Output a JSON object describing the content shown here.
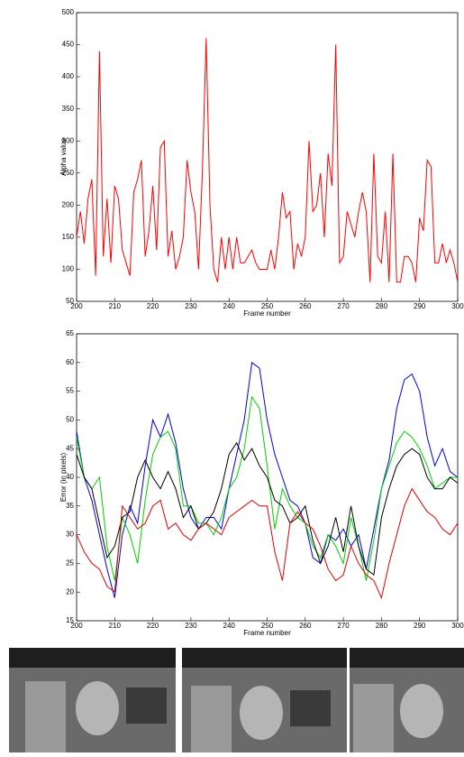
{
  "chart_data": [
    {
      "type": "line",
      "ylabel": "Alpha value",
      "xlabel": "Frame number",
      "color": "#ff0000",
      "x": [
        200,
        201,
        202,
        203,
        204,
        205,
        206,
        207,
        208,
        209,
        210,
        211,
        212,
        213,
        214,
        215,
        216,
        217,
        218,
        219,
        220,
        221,
        222,
        223,
        224,
        225,
        226,
        227,
        228,
        229,
        230,
        231,
        232,
        233,
        234,
        235,
        236,
        237,
        238,
        239,
        240,
        241,
        242,
        243,
        244,
        245,
        246,
        247,
        248,
        249,
        250,
        251,
        252,
        253,
        254,
        255,
        256,
        257,
        258,
        259,
        260,
        261,
        262,
        263,
        264,
        265,
        266,
        267,
        268,
        269,
        270,
        271,
        272,
        273,
        274,
        275,
        276,
        277,
        278,
        279,
        280,
        281,
        282,
        283,
        284,
        285,
        286,
        287,
        288,
        289,
        290,
        291,
        292,
        293,
        294,
        295,
        296,
        297,
        298,
        299,
        300
      ],
      "values": [
        150,
        190,
        140,
        210,
        240,
        90,
        440,
        120,
        210,
        110,
        230,
        210,
        130,
        110,
        90,
        220,
        240,
        270,
        120,
        160,
        230,
        130,
        290,
        300,
        120,
        160,
        100,
        120,
        150,
        270,
        220,
        190,
        100,
        250,
        460,
        200,
        100,
        80,
        150,
        100,
        150,
        100,
        150,
        110,
        110,
        120,
        130,
        110,
        100,
        100,
        100,
        130,
        100,
        150,
        220,
        180,
        190,
        100,
        140,
        120,
        150,
        300,
        190,
        200,
        250,
        150,
        280,
        230,
        450,
        110,
        120,
        190,
        170,
        150,
        190,
        220,
        190,
        80,
        280,
        120,
        110,
        190,
        80,
        280,
        80,
        80,
        120,
        120,
        110,
        80,
        180,
        160,
        270,
        260,
        110,
        110,
        140,
        110,
        130,
        110,
        80
      ],
      "xlim": [
        200,
        300
      ],
      "ylim": [
        50,
        500
      ],
      "xticks": [
        200,
        210,
        220,
        230,
        240,
        250,
        260,
        270,
        280,
        290,
        300
      ],
      "yticks": [
        50,
        100,
        150,
        200,
        250,
        300,
        350,
        400,
        450,
        500
      ]
    },
    {
      "type": "line",
      "ylabel": "Error (in pixels)",
      "xlabel": "Frame number",
      "x": [
        200,
        202,
        204,
        206,
        208,
        210,
        212,
        214,
        216,
        218,
        220,
        222,
        224,
        226,
        228,
        230,
        232,
        234,
        236,
        238,
        240,
        242,
        244,
        246,
        248,
        250,
        252,
        254,
        256,
        258,
        260,
        262,
        264,
        266,
        268,
        270,
        272,
        274,
        276,
        278,
        280,
        282,
        284,
        286,
        288,
        290,
        292,
        294,
        296,
        298,
        300
      ],
      "series": [
        {
          "color": "#0000e0",
          "values": [
            48,
            40,
            36,
            30,
            24,
            19,
            30,
            35,
            32,
            42,
            50,
            47,
            51,
            46,
            38,
            33,
            31,
            33,
            33,
            31,
            38,
            44,
            50,
            60,
            59,
            50,
            44,
            40,
            36,
            35,
            32,
            26,
            25,
            30,
            29,
            31,
            28,
            30,
            24,
            31,
            38,
            43,
            52,
            57,
            58,
            55,
            47,
            42,
            45,
            41,
            40
          ]
        },
        {
          "color": "#00d000",
          "values": [
            47,
            40,
            38,
            40,
            28,
            22,
            33,
            30,
            25,
            36,
            44,
            47,
            48,
            45,
            35,
            35,
            32,
            32,
            30,
            33,
            38,
            40,
            45,
            54,
            52,
            42,
            31,
            38,
            35,
            33,
            32,
            28,
            26,
            30,
            28,
            25,
            33,
            28,
            22,
            29,
            38,
            42,
            46,
            48,
            47,
            45,
            42,
            38,
            39,
            40,
            40
          ]
        },
        {
          "color": "#000000",
          "values": [
            44,
            40,
            38,
            32,
            26,
            28,
            33,
            34,
            40,
            43,
            40,
            38,
            41,
            38,
            33,
            35,
            31,
            32,
            34,
            38,
            44,
            46,
            43,
            45,
            42,
            40,
            36,
            35,
            32,
            33,
            35,
            29,
            25,
            28,
            33,
            27,
            35,
            28,
            24,
            23,
            33,
            38,
            42,
            44,
            45,
            44,
            40,
            38,
            38,
            40,
            39
          ]
        },
        {
          "color": "#e00000",
          "values": [
            30,
            27,
            25,
            24,
            21,
            20,
            35,
            33,
            31,
            32,
            35,
            36,
            31,
            32,
            30,
            29,
            31,
            32,
            31,
            30,
            33,
            34,
            35,
            36,
            35,
            35,
            27,
            22,
            32,
            34,
            32,
            31,
            28,
            24,
            22,
            23,
            28,
            25,
            23,
            22,
            19,
            25,
            30,
            35,
            38,
            36,
            34,
            33,
            31,
            30,
            32
          ]
        }
      ],
      "xlim": [
        200,
        300
      ],
      "ylim": [
        15,
        65
      ],
      "xticks": [
        200,
        210,
        220,
        230,
        240,
        250,
        260,
        270,
        280,
        290,
        300
      ],
      "yticks": [
        15,
        20,
        25,
        30,
        35,
        40,
        45,
        50,
        55,
        60,
        65
      ]
    }
  ]
}
